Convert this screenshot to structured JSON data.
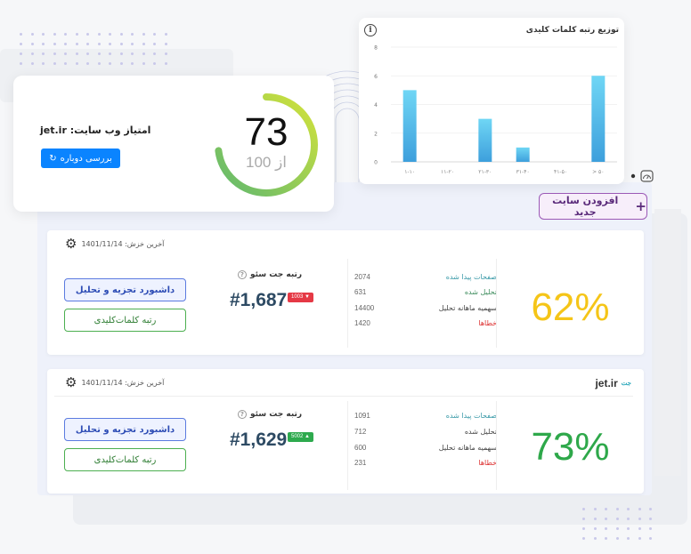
{
  "score_card": {
    "title": "امتیاز وب سایت: jet.ir",
    "recheck_label": "بررسی دوباره",
    "score": "73",
    "out_of": "از 100",
    "score_value": 73,
    "gauge_colors": [
      "#5fb86f",
      "#d4e33a"
    ]
  },
  "chart_card": {
    "title": "توزیع رتبه کلمات کلیدی",
    "info_icon": "i"
  },
  "chart_data": {
    "type": "bar",
    "title": "توزیع رتبه کلمات کلیدی",
    "categories": [
      "۱-۱۰",
      "۱۱-۲۰",
      "۲۱-۳۰",
      "۳۱-۴۰",
      "۴۱-۵۰",
      "> ۵۰"
    ],
    "values": [
      5,
      0,
      3,
      1,
      0,
      6
    ],
    "xlabel": "",
    "ylabel": "",
    "ylim": [
      0,
      8
    ],
    "yticks": [
      0,
      2,
      4,
      6,
      8
    ],
    "grid": true,
    "bar_color": "#5bc0eb"
  },
  "toolbar": {
    "add_site_label": "افزودن سایت جدید",
    "add_icon": "+"
  },
  "sites": [
    {
      "domain": "",
      "last_crawl": "آخرین خزش: 1401/11/14",
      "dashboard_label": "داشبورد تجزیه و تحلیل",
      "keywords_label": "رتبه کلمات‌کلیدی",
      "rank_label": "رتبه جت سئو",
      "rank": "#1,687",
      "rank_badge": "1003 ▼",
      "rank_badge_color": "#e53945",
      "stats": [
        {
          "label": "صفحات پیدا شده",
          "value": "2074"
        },
        {
          "label": "تحلیل شده",
          "value": "631"
        },
        {
          "label": "سهمیه ماهانه تحلیل",
          "value": "14400"
        },
        {
          "label": "خطاها",
          "value": "1420"
        }
      ],
      "percent": "62%",
      "percent_color": "#f5c518"
    },
    {
      "domain": "jet.ir",
      "last_crawl": "آخرین خزش: 1401/11/14",
      "dashboard_label": "داشبورد تجزیه و تحلیل",
      "keywords_label": "رتبه کلمات‌کلیدی",
      "rank_label": "رتبه جت سئو",
      "rank": "#1,629",
      "rank_badge": "5002 ▲",
      "rank_badge_color": "#2eaa4e",
      "stats": [
        {
          "label": "صفحات پیدا شده",
          "value": "1091"
        },
        {
          "label": "تحلیل شده",
          "value": "712"
        },
        {
          "label": "سهمیه ماهانه تحلیل",
          "value": "600"
        },
        {
          "label": "خطاها",
          "value": "231"
        }
      ],
      "percent": "73%",
      "percent_color": "#2ea84a"
    }
  ]
}
